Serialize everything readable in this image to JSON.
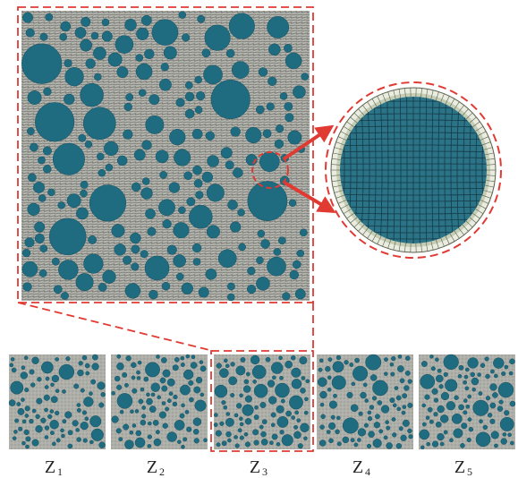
{
  "panels": [
    {
      "letter": "Z",
      "sub": "1"
    },
    {
      "letter": "Z",
      "sub": "2"
    },
    {
      "letter": "Z",
      "sub": "3"
    },
    {
      "letter": "Z",
      "sub": "4"
    },
    {
      "letter": "Z",
      "sub": "5"
    }
  ]
}
